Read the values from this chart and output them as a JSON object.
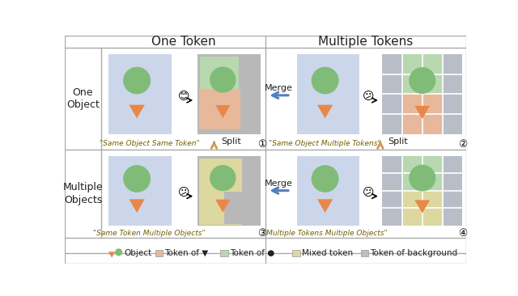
{
  "title_left": "One Token",
  "title_right": "Multiple Tokens",
  "row1_label": "One\nObject",
  "row2_label": "Multiple\nObjects",
  "caption1": "\"Same Object Same Token\"",
  "caption2": "\"Same Object Multiple Tokens\"",
  "caption3": "\"Same Token Multiple Objects\"",
  "caption4": "\"Multiple Tokens Multiple Objects\"",
  "num1": "①",
  "num2": "②",
  "num3": "③",
  "num4": "④",
  "merge_label": "Merge",
  "split_label": "Split",
  "bg_color": "#ffffff",
  "panel_bg": "#ccd6ea",
  "token_triangle_color": "#e8b89a",
  "token_circle_color": "#b8d8b0",
  "token_mixed_color": "#ddd8a0",
  "token_bg_color": "#b8bec8",
  "gray_token_bg": "#b8b8b8",
  "green_circle_color": "#80bc78",
  "orange_triangle_color": "#e88848",
  "grid_line_color": "#ffffff",
  "text_color": "#222222",
  "olive_text_color": "#706000",
  "merge_arrow_color": "#5080c0",
  "split_arrow_color": "#d09858",
  "border_color": "#aaaaaa"
}
